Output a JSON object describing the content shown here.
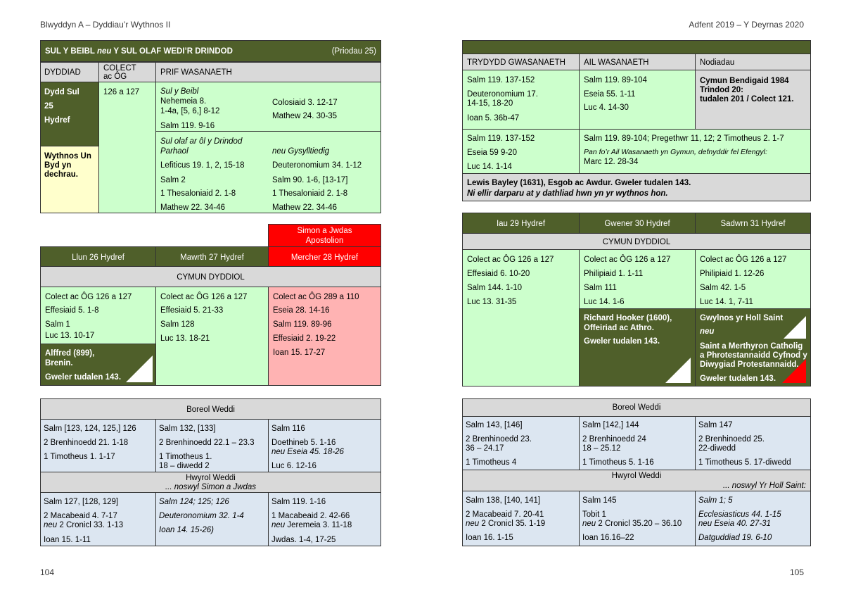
{
  "header": {
    "left": "Blwyddyn A – Dyddiau’r Wythnos II",
    "right": "Adfent 2019 – Y Deyrnas 2020"
  },
  "page_numbers": {
    "left": "104",
    "right": "105"
  },
  "sunday": {
    "title_a": "SUL Y BEIBL",
    "title_neu": "neu",
    "title_b": "Y SUL OLAF WEDI’R DRINDOD",
    "title_right": "(Priodau 25)",
    "h_dyddiad": "DYDDIAD",
    "h_colect": "COLECT",
    "h_colect2": "ac ÔG",
    "h_prif": "PRIF WASANAETH",
    "date1": "Dydd Sul",
    "date2": "25",
    "date3": "Hydref",
    "colect": "126 a 127",
    "week1": "Wythnos Un",
    "week2": "Byd yn",
    "week3": "dechrau.",
    "beibl_label": "Sul y Beibl",
    "neh1": "Nehemeia 8.",
    "neh2": "1-4a, [5, 6,] 8-12",
    "salm_beibl": "Salm 119. 9-16",
    "col1": "Colosiaid 3. 12-17",
    "mat1": "Mathew 24. 30-35",
    "olaf_label": "Sul olaf ar ôl y Drindod",
    "parhaol": "Parhaol",
    "neu_gysylltiedig": "neu Gysylltiedig",
    "lef": "Lefiticus 19. 1, 2, 15-18",
    "deut": "Deuteronomium 34. 1-12",
    "salm2": "Salm 2",
    "salm90": "Salm 90. 1-6, [13-17]",
    "thes_a": "1 Thesaloniaid 2. 1-8",
    "thes_b": "1 Thesaloniaid 2. 1-8",
    "mat_a": "Mathew 22. 34-46",
    "mat_b": "Mathew 22. 34-46"
  },
  "topright": {
    "h1": "TRYDYDD GWASANAETH",
    "h2": "AIL WASANAETH",
    "h3": "Nodiadau",
    "r1c1a": "Salm 119. 137-152",
    "r1c1b": "Deuteronomium 17.",
    "r1c1c": "14-15, 18-20",
    "r1c1d": "Ioan 5. 36b-47",
    "r1c2a": "Salm 119. 89-104",
    "r1c2b": "Eseia 55. 1-11",
    "r1c2c": "Luc 4. 14-30",
    "note1": "Cymun Bendigaid 1984",
    "note2": "Trindod 20:",
    "note3": "tudalen 201 / Colect 121.",
    "r2c1a": "Salm 119. 137-152",
    "r2c1b": "Eseia 59 9-20",
    "r2c1c": "Luc 14. 1-14",
    "r2c2a": "Salm 119. 89-104;  Pregethwr 11, 12;  2 Timotheus 2. 1-7",
    "r2c2b": "Pan fo’r Ail Wasanaeth yn Gymun, defnyddir fel Efengyl:",
    "r2c2c": "Marc 12. 28-34",
    "bayley": "Lewis Bayley (1631), Esgob ac Awdur. Gweler tudalen 143.",
    "ni": "Ni ellir darparu at y dathliad hwn yn yr wythnos hon."
  },
  "weekL": {
    "simon1": "Simon a Jwdas",
    "simon2": "Apostolion",
    "d1": "Llun 26 Hydref",
    "d2": "Mawrth 27 Hydref",
    "d3": "Mercher 28 Hydref",
    "cymun": "CYMUN DYDDIOL",
    "c1": [
      "Colect ac ÔG 126 a 127",
      "Effesiaid 5. 1-8",
      "Salm 1",
      "Luc 13. 10-17"
    ],
    "c2": [
      "Colect ac ÔG 126 a 127",
      "Effesiaid 5. 21-33",
      "Salm 128",
      "Luc 13. 18-21"
    ],
    "c3": [
      "Colect ac ÔG 289 a 110",
      "Eseia 28. 14-16",
      "Salm 119. 89-96",
      "Effesiaid 2. 19-22",
      "Ioan 15. 17-27"
    ],
    "alf1": "Alffred (899),",
    "alf2": "Brenin.",
    "alf3": "Gweler tudalen 143."
  },
  "weekR": {
    "d1": "Iau 29 Hydref",
    "d2": "Gwener 30 Hydref",
    "d3": "Sadwrn 31 Hydref",
    "cymun": "CYMUN DYDDIOL",
    "c1": [
      "Colect ac ÔG 126 a 127",
      "Effesiaid 6. 10-20",
      "Salm 144. 1-10",
      "Luc 13. 31-35"
    ],
    "c2": [
      "Colect ac ÔG 126 a 127",
      "Philipiaid 1. 1-11",
      "Salm 111",
      "Luc 14. 1-6"
    ],
    "c3": [
      "Colect ac ÔG 126 a 127",
      "Philipiaid 1. 12-26",
      "Salm 42. 1-5",
      "Luc 14. 1, 7-11"
    ],
    "hook1": "Richard Hooker (1600),",
    "hook2": "Offeiriad ac Athro.",
    "hook3": "Gweler tudalen 143.",
    "gwyl1": "Gwylnos yr Holl Saint",
    "gwyl_neu": "neu",
    "gwyl2": "Saint a Merthyron Catholig",
    "gwyl3": "a Phrotestannaidd Cyfnod y",
    "gwyl4": "Diwygiad Protestannaidd.",
    "gwyl5": "Gweler tudalen 143."
  },
  "boreolL": {
    "title": "Boreol Weddi",
    "c1": [
      "Salm [123, 124, 125,] 126",
      "2 Brenhinoedd 21. 1-18",
      "1 Timotheus 1. 1-17"
    ],
    "c2a": "Salm 132, [133]",
    "c2b": "2 Brenhinoedd 22.1 – 23.3",
    "c2c": "1 Timotheus 1.",
    "c2d": "18 – diwedd 2",
    "c3a": "Salm 116",
    "c3b": "Doethineb 5. 1-16",
    "c3c": "neu Eseia 45. 18-26",
    "c3d": "Luc 6. 12-16",
    "hwyrol": "Hwyrol Weddi",
    "hwyrol_sub": "... noswyl Simon a Jwdas",
    "e1a": "Salm 127, [128, 129]",
    "e1b": "2 Macabeaid 4. 7-17",
    "e1c_neu": "neu",
    "e1c": "2 Cronicl 33. 1-13",
    "e1d": "Ioan 15. 1-11",
    "e2a": "Salm 124; 125; 126",
    "e2b": "Deuteronomium 32. 1-4",
    "e2c": "Ioan 14. 15-26)",
    "e3a": "Salm 119. 1-16",
    "e3b": "1 Macabeaid 2. 42-66",
    "e3c_neu": "neu",
    "e3c": "Jeremeia 3. 11-18",
    "e3d": "Jwdas. 1-4, 17-25"
  },
  "boreolR": {
    "title": "Boreol Weddi",
    "c1a": "Salm 143, [146]",
    "c1b": "2 Brenhinoedd 23.",
    "c1c": "36 – 24.17",
    "c1d": "1 Timotheus 4",
    "c2a": "Salm [142,] 144",
    "c2b": "2 Brenhinoedd 24",
    "c2c": "18 – 25.12",
    "c2d": "1 Timotheus 5. 1-16",
    "c3a": "Salm 147",
    "c3b": "2 Brenhinoedd 25.",
    "c3c": "22-diwedd",
    "c3d": "1 Timotheus 5. 17-diwedd",
    "hwyrol": "Hwyrol Weddi",
    "hwyrol_sub": "... noswyl Yr Holl Saint:",
    "e1a": "Salm 138, [140, 141]",
    "e1b": "2 Macabeaid 7. 20-41",
    "e1c_neu": "neu",
    "e1c": "2 Cronicl 35. 1-19",
    "e1d": "Ioan 16. 1-15",
    "e2a": "Salm 145",
    "e2b": "Tobit 1",
    "e2c_neu": "neu",
    "e2c": "2 Cronicl 35.20 – 36.10",
    "e2d": "Ioan 16.16–22",
    "e3a": "Salm 1; 5",
    "e3b": "Ecclesiasticus 44. 1-15",
    "e3c": "neu Eseia 40. 27-31",
    "e3d": "Datguddiad 19. 6-10"
  }
}
